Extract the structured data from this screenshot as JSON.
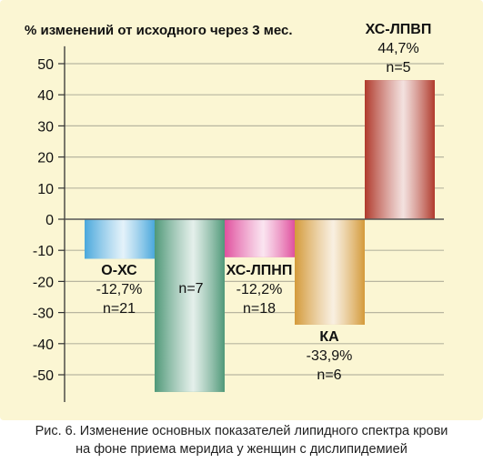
{
  "chart_data": {
    "type": "bar",
    "title": "% изменений от исходного через 3 мес.",
    "xlabel": "",
    "ylabel": "",
    "ylim": [
      -60,
      55
    ],
    "yticks": [
      50,
      40,
      30,
      20,
      10,
      0,
      -10,
      -20,
      -30,
      -40,
      -50
    ],
    "grid": true,
    "categories": [
      "О-ХС",
      "",
      "ХС-ЛПНП",
      "КА",
      "ХС-ЛПВП"
    ],
    "values": [
      -12.7,
      -55.5,
      -12.2,
      -33.9,
      44.7
    ],
    "labels": [
      [
        "О-ХС",
        "-12,7%",
        "n=21"
      ],
      [
        "n=7"
      ],
      [
        "ХС-ЛПНП",
        "-12,2%",
        "n=18"
      ],
      [
        "КА",
        "-33,9%",
        "n=6"
      ],
      [
        "ХС-ЛПВП",
        "44,7%",
        "n=5"
      ]
    ],
    "colors": [
      "#4aa8dc",
      "#4f9878",
      "#e0509e",
      "#d49a3a",
      "#b03a2c"
    ],
    "background": "#fbf6d3"
  },
  "caption": {
    "line1": "Рис. 6. Изменение основных показателей липидного спектра крови",
    "line2": "на фоне приема меридиа у женщин с дислипидемией"
  }
}
